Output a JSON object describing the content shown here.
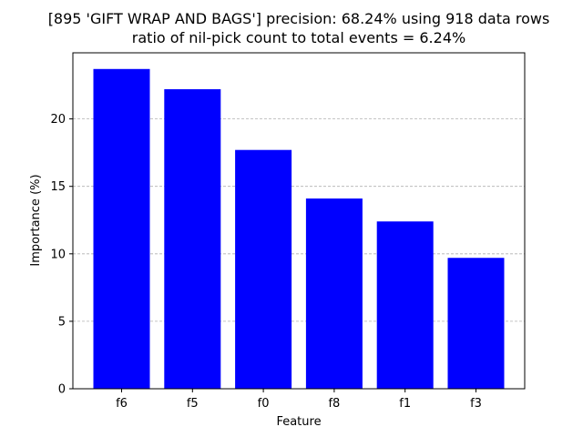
{
  "chart_data": {
    "type": "bar",
    "title": "[895 'GIFT WRAP AND BAGS'] precision: 68.24% using 918 data rows",
    "subtitle": "ratio of nil-pick count to total events = 6.24%",
    "xlabel": "Feature",
    "ylabel": "Importance (%)",
    "categories": [
      "f6",
      "f5",
      "f0",
      "f8",
      "f1",
      "f3"
    ],
    "values": [
      23.7,
      22.2,
      17.7,
      14.1,
      12.4,
      9.7
    ],
    "yticks": [
      0,
      5,
      10,
      15,
      20
    ],
    "ylim": [
      0,
      24.9
    ],
    "grid": "y-dashed",
    "bar_color": "#0000ff",
    "grid_color": "#b0b0b0"
  }
}
